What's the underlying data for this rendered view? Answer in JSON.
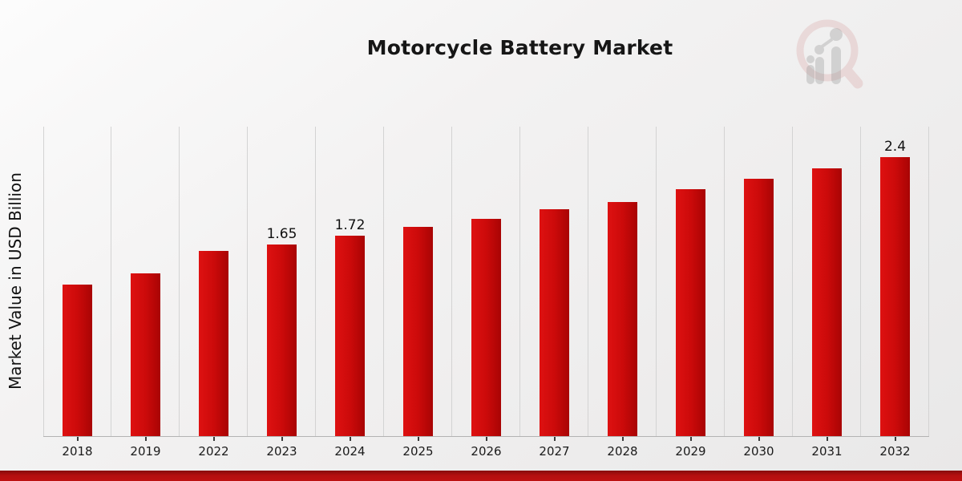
{
  "page": {
    "title": "Motorcycle Battery Market"
  },
  "colors": {
    "bar_red": "#cb0a0a",
    "bar_red_light": "#de1111",
    "bar_red_dark": "#a80404",
    "accent_strip": "#b30f0f",
    "background": "#efeeee",
    "gridline": "#d3d3d3",
    "text": "#161616",
    "logo_pink": "#d9a7a7",
    "logo_gray": "#9a9a9a"
  },
  "logo": {
    "name": "market-research-future-watermark"
  },
  "chart_data": {
    "type": "bar",
    "title": "Motorcycle Battery Market",
    "xlabel": "",
    "ylabel": "Market Value in USD Billion",
    "categories": [
      "2018",
      "2019",
      "2022",
      "2023",
      "2024",
      "2025",
      "2026",
      "2027",
      "2028",
      "2029",
      "2030",
      "2031",
      "2032"
    ],
    "values": [
      1.3,
      1.4,
      1.59,
      1.65,
      1.72,
      1.8,
      1.87,
      1.95,
      2.01,
      2.12,
      2.21,
      2.3,
      2.4
    ],
    "bar_labels": [
      "",
      "",
      "",
      "1.65",
      "1.72",
      "",
      "",
      "",
      "",
      "",
      "",
      "",
      "2.4"
    ],
    "ylim": [
      0,
      2.66
    ],
    "grid": "vertical",
    "legend": "none",
    "y_axis_ticks_visible": false
  }
}
